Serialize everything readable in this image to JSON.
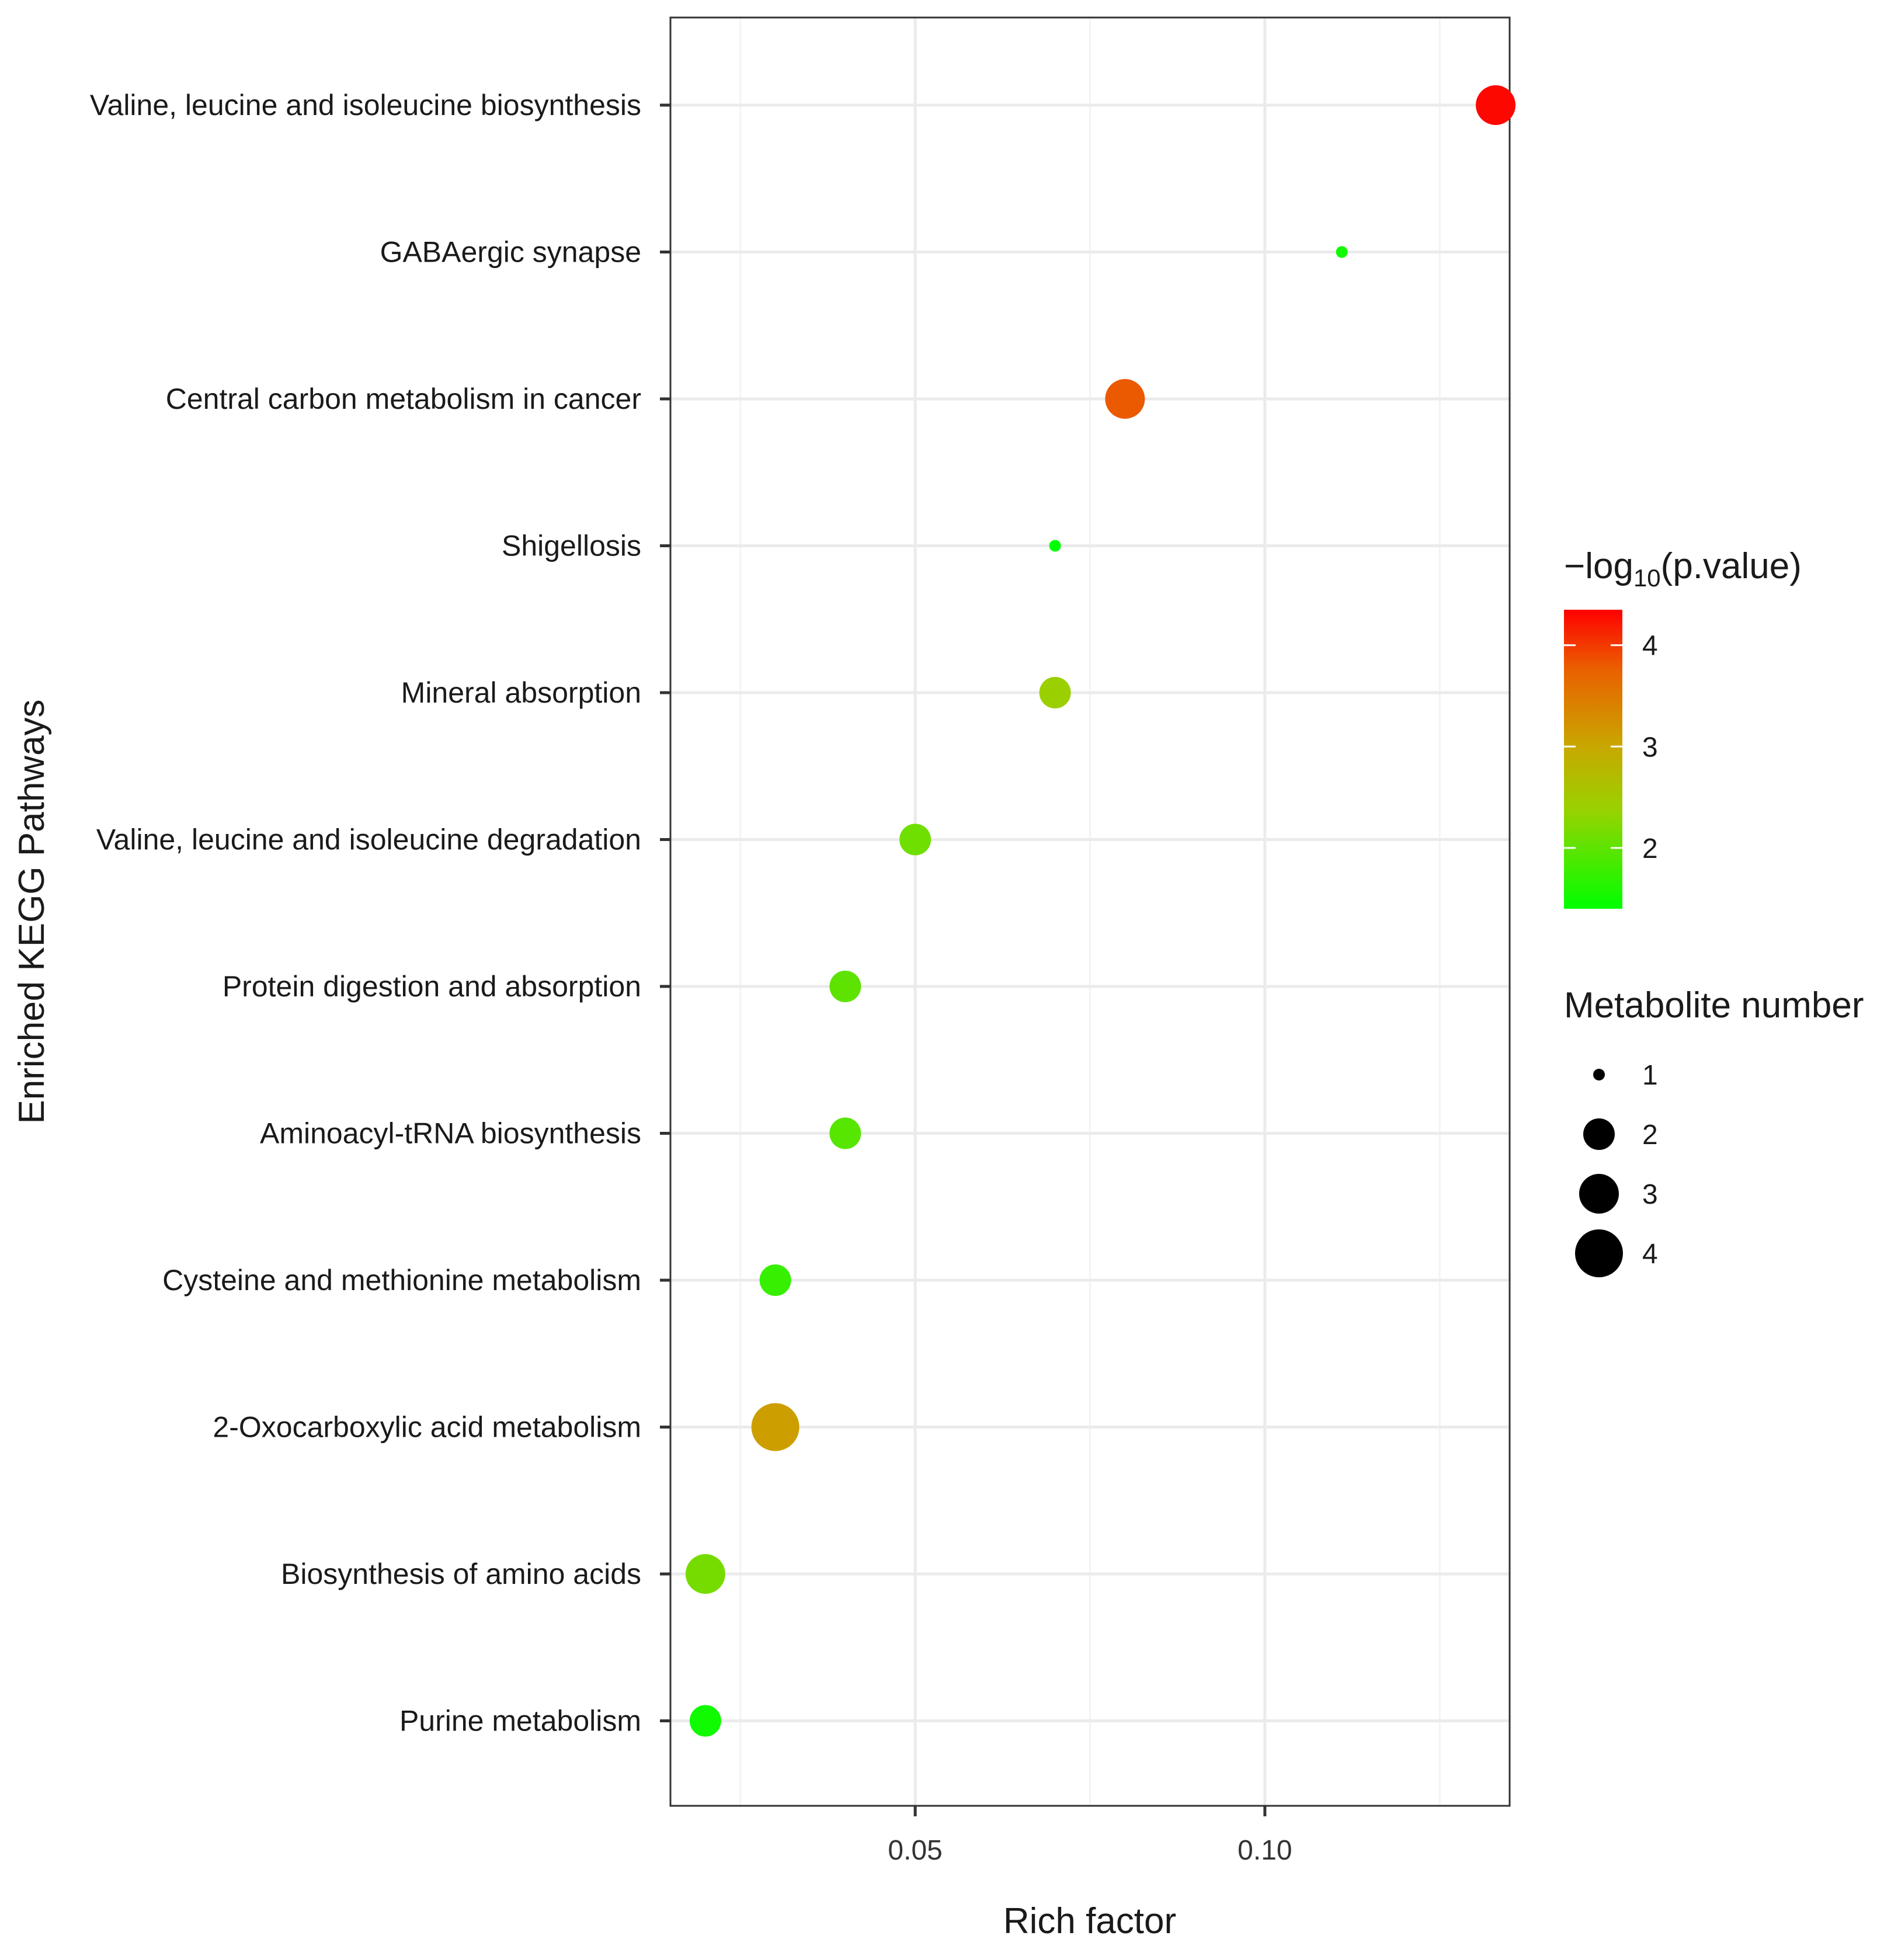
{
  "chart_data": {
    "type": "scatter",
    "title": "",
    "xlabel": "Rich factor",
    "ylabel": "Enriched KEGG Pathways",
    "xlim": [
      0.015,
      0.135
    ],
    "x_ticks": [
      0.05,
      0.1
    ],
    "x_tick_labels": [
      "0.05",
      "0.10"
    ],
    "x_minor_ticks": [
      0.025,
      0.075,
      0.125
    ],
    "grid": true,
    "categories": [
      "Valine, leucine and isoleucine biosynthesis",
      "GABAergic synapse",
      "Central carbon metabolism in cancer",
      "Shigellosis",
      "Mineral absorption",
      "Valine, leucine and isoleucine degradation",
      "Protein digestion and absorption",
      "Aminoacyl-tRNA biosynthesis",
      "Cysteine and methionine metabolism",
      "2-Oxocarboxylic acid metabolism",
      "Biosynthesis of amino acids",
      "Purine metabolism"
    ],
    "points": [
      {
        "pathway": "Valine, leucine and isoleucine biosynthesis",
        "rich_factor": 0.133,
        "neg_log10_p": 4.3,
        "metabolite_number": 3
      },
      {
        "pathway": "GABAergic synapse",
        "rich_factor": 0.111,
        "neg_log10_p": 1.5,
        "metabolite_number": 1
      },
      {
        "pathway": "Central carbon metabolism in cancer",
        "rich_factor": 0.08,
        "neg_log10_p": 3.8,
        "metabolite_number": 3
      },
      {
        "pathway": "Shigellosis",
        "rich_factor": 0.07,
        "neg_log10_p": 1.4,
        "metabolite_number": 1
      },
      {
        "pathway": "Mineral absorption",
        "rich_factor": 0.07,
        "neg_log10_p": 2.4,
        "metabolite_number": 2
      },
      {
        "pathway": "Valine, leucine and isoleucine degradation",
        "rich_factor": 0.05,
        "neg_log10_p": 2.1,
        "metabolite_number": 2
      },
      {
        "pathway": "Protein digestion and absorption",
        "rich_factor": 0.04,
        "neg_log10_p": 2.0,
        "metabolite_number": 2
      },
      {
        "pathway": "Aminoacyl-tRNA biosynthesis",
        "rich_factor": 0.04,
        "neg_log10_p": 1.95,
        "metabolite_number": 2
      },
      {
        "pathway": "Cysteine and methionine metabolism",
        "rich_factor": 0.03,
        "neg_log10_p": 1.75,
        "metabolite_number": 2
      },
      {
        "pathway": "2-Oxocarboxylic acid metabolism",
        "rich_factor": 0.03,
        "neg_log10_p": 3.1,
        "metabolite_number": 4
      },
      {
        "pathway": "Biosynthesis of amino acids",
        "rich_factor": 0.02,
        "neg_log10_p": 2.15,
        "metabolite_number": 3
      },
      {
        "pathway": "Purine metabolism",
        "rich_factor": 0.02,
        "neg_log10_p": 1.5,
        "metabolite_number": 2
      }
    ],
    "color_scale": {
      "title_prefix": "−log",
      "title_subscript": "10",
      "title_suffix": "(p.value)",
      "range": [
        1.4,
        4.35
      ],
      "ticks": [
        2,
        3,
        4
      ],
      "tick_labels": [
        "2",
        "3",
        "4"
      ],
      "low_color": "#00ff00",
      "high_color": "#ff0000"
    },
    "size_legend": {
      "title": "Metabolite number",
      "values": [
        1,
        2,
        3,
        4
      ],
      "labels": [
        "1",
        "2",
        "3",
        "4"
      ]
    },
    "legend_position": "right"
  }
}
